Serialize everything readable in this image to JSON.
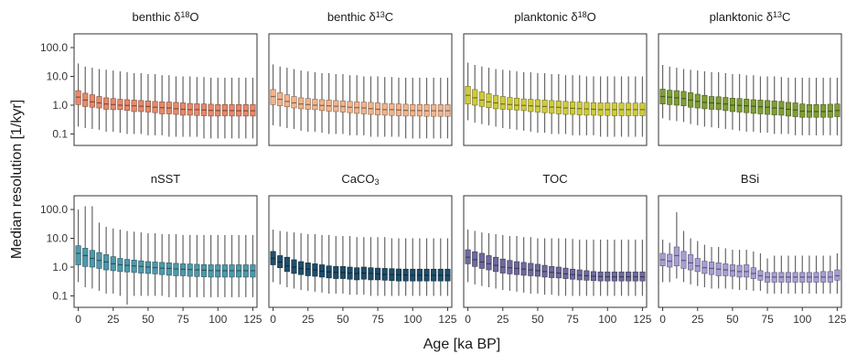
{
  "figure": {
    "xlabel": "Age [ka BP]",
    "ylabel": "Median resolution [1/kyr]"
  },
  "chart_data": {
    "type": "box",
    "y_scale": "log10",
    "ylim": [
      0.04,
      300
    ],
    "y_ticks": [
      0.1,
      1.0,
      10.0,
      100.0
    ],
    "y_tick_labels": [
      "0.1",
      "1.0",
      "10.0",
      "100.0"
    ],
    "xlim": [
      -3,
      128
    ],
    "x_ticks": [
      0,
      25,
      50,
      75,
      100,
      125
    ],
    "x_tick_labels": [
      "0",
      "25",
      "50",
      "75",
      "100",
      "125"
    ],
    "box_width_ka": 3.6,
    "bin_ages": [
      0,
      5,
      10,
      15,
      20,
      25,
      30,
      35,
      40,
      45,
      50,
      55,
      60,
      65,
      70,
      75,
      80,
      85,
      90,
      95,
      100,
      105,
      110,
      115,
      120,
      125
    ],
    "grid": false,
    "panels": [
      {
        "title_parts": [
          "benthic δ",
          "18",
          "O"
        ],
        "color": "#E8896A",
        "q1": [
          1.05,
          0.9,
          0.85,
          0.8,
          0.72,
          0.7,
          0.7,
          0.66,
          0.6,
          0.6,
          0.58,
          0.55,
          0.5,
          0.5,
          0.48,
          0.45,
          0.45,
          0.44,
          0.43,
          0.42,
          0.42,
          0.43,
          0.42,
          0.42,
          0.42,
          0.42
        ],
        "med": [
          1.9,
          1.5,
          1.3,
          1.2,
          1.1,
          1.05,
          1.0,
          0.98,
          0.95,
          0.92,
          0.9,
          0.85,
          0.82,
          0.8,
          0.75,
          0.72,
          0.7,
          0.7,
          0.68,
          0.66,
          0.65,
          0.65,
          0.65,
          0.64,
          0.64,
          0.64
        ],
        "q3": [
          3.2,
          2.6,
          2.3,
          2.0,
          1.8,
          1.7,
          1.6,
          1.55,
          1.5,
          1.45,
          1.4,
          1.35,
          1.3,
          1.28,
          1.25,
          1.2,
          1.15,
          1.12,
          1.1,
          1.08,
          1.05,
          1.05,
          1.05,
          1.05,
          1.05,
          1.05
        ],
        "lo": [
          0.18,
          0.16,
          0.15,
          0.14,
          0.12,
          0.12,
          0.11,
          0.1,
          0.1,
          0.1,
          0.09,
          0.09,
          0.09,
          0.08,
          0.08,
          0.08,
          0.08,
          0.08,
          0.07,
          0.07,
          0.07,
          0.07,
          0.07,
          0.07,
          0.07,
          0.07
        ],
        "hi": [
          28,
          22,
          20,
          18,
          17,
          16,
          15,
          14,
          13,
          13,
          12,
          12,
          11,
          11,
          10,
          10,
          10,
          9.5,
          9.5,
          9,
          9,
          9,
          9,
          9,
          9,
          9
        ]
      },
      {
        "title_parts": [
          "benthic δ",
          "13",
          "C"
        ],
        "color": "#F2B48C",
        "q1": [
          1.05,
          0.95,
          0.88,
          0.8,
          0.75,
          0.72,
          0.7,
          0.65,
          0.62,
          0.6,
          0.58,
          0.55,
          0.52,
          0.5,
          0.48,
          0.46,
          0.45,
          0.44,
          0.43,
          0.42,
          0.42,
          0.42,
          0.41,
          0.41,
          0.41,
          0.41
        ],
        "med": [
          2.0,
          1.6,
          1.35,
          1.2,
          1.1,
          1.05,
          1.0,
          0.98,
          0.95,
          0.92,
          0.9,
          0.85,
          0.82,
          0.8,
          0.76,
          0.72,
          0.7,
          0.7,
          0.68,
          0.66,
          0.65,
          0.65,
          0.64,
          0.64,
          0.64,
          0.64
        ],
        "q3": [
          3.5,
          2.7,
          2.3,
          2.0,
          1.8,
          1.7,
          1.62,
          1.55,
          1.5,
          1.45,
          1.4,
          1.35,
          1.3,
          1.28,
          1.25,
          1.2,
          1.15,
          1.12,
          1.1,
          1.08,
          1.05,
          1.05,
          1.05,
          1.04,
          1.04,
          1.04
        ],
        "lo": [
          0.2,
          0.18,
          0.16,
          0.15,
          0.13,
          0.12,
          0.12,
          0.11,
          0.1,
          0.1,
          0.1,
          0.09,
          0.09,
          0.09,
          0.08,
          0.08,
          0.08,
          0.08,
          0.08,
          0.07,
          0.07,
          0.07,
          0.07,
          0.07,
          0.07,
          0.07
        ],
        "hi": [
          26,
          22,
          20,
          18,
          16,
          15,
          14,
          13,
          13,
          12,
          12,
          11,
          11,
          10,
          10,
          10,
          9.5,
          9.5,
          9,
          9,
          9,
          9,
          9,
          9,
          9,
          9
        ]
      },
      {
        "title_parts": [
          "planktonic δ",
          "18",
          "O"
        ],
        "color": "#CFCB3A",
        "q1": [
          1.1,
          1.0,
          0.9,
          0.82,
          0.75,
          0.72,
          0.7,
          0.68,
          0.65,
          0.6,
          0.58,
          0.55,
          0.52,
          0.5,
          0.48,
          0.48,
          0.46,
          0.45,
          0.45,
          0.44,
          0.44,
          0.43,
          0.43,
          0.43,
          0.43,
          0.43
        ],
        "med": [
          2.2,
          1.8,
          1.5,
          1.3,
          1.2,
          1.1,
          1.05,
          1.0,
          0.98,
          0.95,
          0.92,
          0.9,
          0.86,
          0.84,
          0.8,
          0.78,
          0.76,
          0.74,
          0.72,
          0.7,
          0.7,
          0.7,
          0.7,
          0.7,
          0.7,
          0.7
        ],
        "q3": [
          4.5,
          3.5,
          2.9,
          2.5,
          2.2,
          2.0,
          1.85,
          1.75,
          1.65,
          1.6,
          1.55,
          1.5,
          1.45,
          1.4,
          1.35,
          1.3,
          1.28,
          1.25,
          1.22,
          1.2,
          1.2,
          1.2,
          1.18,
          1.18,
          1.18,
          1.18
        ],
        "lo": [
          0.3,
          0.25,
          0.22,
          0.2,
          0.18,
          0.16,
          0.15,
          0.14,
          0.13,
          0.12,
          0.11,
          0.11,
          0.1,
          0.1,
          0.1,
          0.09,
          0.09,
          0.09,
          0.09,
          0.08,
          0.08,
          0.08,
          0.08,
          0.08,
          0.08,
          0.08
        ],
        "hi": [
          30,
          25,
          22,
          20,
          18,
          17,
          16,
          15,
          14,
          14,
          13,
          13,
          12,
          12,
          11,
          11,
          11,
          10,
          10,
          10,
          10,
          10,
          10,
          10,
          10,
          10
        ]
      },
      {
        "title_parts": [
          "planktonic δ",
          "13",
          "C"
        ],
        "color": "#7F9E35",
        "q1": [
          1.1,
          1.05,
          1.0,
          0.95,
          0.85,
          0.8,
          0.75,
          0.72,
          0.7,
          0.65,
          0.6,
          0.58,
          0.55,
          0.52,
          0.5,
          0.48,
          0.46,
          0.45,
          0.42,
          0.4,
          0.38,
          0.38,
          0.38,
          0.38,
          0.38,
          0.4
        ],
        "med": [
          2.0,
          1.9,
          1.8,
          1.7,
          1.5,
          1.35,
          1.25,
          1.2,
          1.15,
          1.1,
          1.0,
          0.98,
          0.95,
          0.92,
          0.88,
          0.85,
          0.8,
          0.78,
          0.72,
          0.68,
          0.62,
          0.6,
          0.6,
          0.6,
          0.62,
          0.65
        ],
        "q3": [
          3.6,
          3.3,
          3.2,
          3.0,
          2.7,
          2.4,
          2.2,
          2.0,
          1.95,
          1.85,
          1.75,
          1.7,
          1.62,
          1.55,
          1.5,
          1.45,
          1.4,
          1.35,
          1.25,
          1.2,
          1.1,
          1.05,
          1.05,
          1.05,
          1.08,
          1.1
        ],
        "lo": [
          0.35,
          0.3,
          0.28,
          0.26,
          0.22,
          0.2,
          0.18,
          0.17,
          0.16,
          0.15,
          0.14,
          0.13,
          0.12,
          0.12,
          0.11,
          0.11,
          0.1,
          0.1,
          0.1,
          0.09,
          0.09,
          0.09,
          0.09,
          0.09,
          0.09,
          0.09
        ],
        "hi": [
          25,
          22,
          20,
          18,
          17,
          16,
          15,
          14,
          14,
          13,
          12,
          12,
          11,
          11,
          10,
          10,
          10,
          9.5,
          9,
          9,
          9,
          9,
          9,
          9,
          9,
          9
        ]
      },
      {
        "title_parts": [
          "nSST"
        ],
        "color": "#4E99AB",
        "q1": [
          1.2,
          1.05,
          1.0,
          0.9,
          0.8,
          0.75,
          0.7,
          0.68,
          0.65,
          0.62,
          0.6,
          0.58,
          0.55,
          0.52,
          0.5,
          0.5,
          0.48,
          0.47,
          0.46,
          0.45,
          0.45,
          0.45,
          0.45,
          0.45,
          0.45,
          0.45
        ],
        "med": [
          3.0,
          2.5,
          2.0,
          1.7,
          1.5,
          1.3,
          1.2,
          1.15,
          1.1,
          1.05,
          1.0,
          0.96,
          0.92,
          0.9,
          0.86,
          0.84,
          0.82,
          0.8,
          0.78,
          0.76,
          0.75,
          0.75,
          0.75,
          0.75,
          0.75,
          0.75
        ],
        "q3": [
          5.5,
          4.5,
          3.8,
          3.2,
          2.7,
          2.3,
          2.0,
          1.85,
          1.75,
          1.65,
          1.55,
          1.5,
          1.45,
          1.4,
          1.35,
          1.3,
          1.28,
          1.25,
          1.22,
          1.2,
          1.2,
          1.2,
          1.2,
          1.2,
          1.2,
          1.2
        ],
        "lo": [
          0.3,
          0.2,
          0.18,
          0.15,
          0.12,
          0.12,
          0.1,
          0.05,
          0.1,
          0.1,
          0.1,
          0.1,
          0.1,
          0.09,
          0.09,
          0.09,
          0.09,
          0.09,
          0.09,
          0.09,
          0.09,
          0.09,
          0.09,
          0.09,
          0.09,
          0.09
        ],
        "hi": [
          100,
          130,
          130,
          35,
          25,
          22,
          20,
          18,
          17,
          16,
          15,
          15,
          14,
          14,
          14,
          13,
          13,
          13,
          13,
          13,
          13,
          13,
          13,
          13,
          13,
          13
        ]
      },
      {
        "title_parts": [
          "CaCO",
          "3",
          ""
        ],
        "color": "#1E4E6B",
        "q1": [
          1.2,
          0.95,
          0.7,
          0.6,
          0.55,
          0.5,
          0.48,
          0.45,
          0.42,
          0.4,
          0.4,
          0.38,
          0.36,
          0.38,
          0.36,
          0.36,
          0.35,
          0.34,
          0.33,
          0.33,
          0.33,
          0.33,
          0.33,
          0.33,
          0.33,
          0.33
        ],
        "med": [
          2.0,
          1.5,
          1.1,
          1.0,
          0.9,
          0.85,
          0.8,
          0.72,
          0.68,
          0.66,
          0.65,
          0.62,
          0.6,
          0.62,
          0.6,
          0.58,
          0.56,
          0.55,
          0.54,
          0.53,
          0.52,
          0.52,
          0.52,
          0.52,
          0.52,
          0.52
        ],
        "q3": [
          3.5,
          2.5,
          2.2,
          1.8,
          1.55,
          1.4,
          1.3,
          1.2,
          1.1,
          1.05,
          1.05,
          1.0,
          0.95,
          1.0,
          0.95,
          0.92,
          0.9,
          0.88,
          0.86,
          0.85,
          0.85,
          0.85,
          0.85,
          0.85,
          0.85,
          0.85
        ],
        "lo": [
          0.3,
          0.25,
          0.2,
          0.18,
          0.16,
          0.15,
          0.14,
          0.13,
          0.12,
          0.12,
          0.12,
          0.11,
          0.11,
          0.11,
          0.1,
          0.1,
          0.1,
          0.1,
          0.1,
          0.1,
          0.1,
          0.1,
          0.1,
          0.1,
          0.1,
          0.1
        ],
        "hi": [
          20,
          18,
          17,
          16,
          15,
          14,
          14,
          13,
          13,
          12,
          12,
          12,
          11,
          11,
          11,
          11,
          11,
          10,
          10,
          10,
          10,
          10,
          10,
          10,
          10,
          10
        ]
      },
      {
        "title_parts": [
          "TOC"
        ],
        "color": "#6E6A9E",
        "q1": [
          1.3,
          1.05,
          0.9,
          0.8,
          0.7,
          0.62,
          0.58,
          0.55,
          0.52,
          0.5,
          0.48,
          0.45,
          0.43,
          0.42,
          0.4,
          0.38,
          0.36,
          0.35,
          0.34,
          0.33,
          0.33,
          0.33,
          0.33,
          0.33,
          0.33,
          0.33
        ],
        "med": [
          2.2,
          1.8,
          1.5,
          1.3,
          1.15,
          1.0,
          0.95,
          0.9,
          0.85,
          0.8,
          0.75,
          0.7,
          0.66,
          0.62,
          0.58,
          0.55,
          0.52,
          0.5,
          0.48,
          0.47,
          0.46,
          0.46,
          0.46,
          0.46,
          0.46,
          0.46
        ],
        "q3": [
          4.0,
          3.4,
          3.0,
          2.5,
          2.2,
          1.9,
          1.7,
          1.55,
          1.45,
          1.35,
          1.25,
          1.15,
          1.05,
          1.0,
          0.92,
          0.85,
          0.8,
          0.75,
          0.7,
          0.68,
          0.68,
          0.68,
          0.68,
          0.68,
          0.68,
          0.68
        ],
        "lo": [
          0.3,
          0.25,
          0.22,
          0.2,
          0.18,
          0.16,
          0.15,
          0.14,
          0.13,
          0.12,
          0.12,
          0.11,
          0.11,
          0.1,
          0.1,
          0.1,
          0.1,
          0.1,
          0.1,
          0.1,
          0.1,
          0.1,
          0.1,
          0.1,
          0.1,
          0.1
        ],
        "hi": [
          20,
          18,
          16,
          15,
          14,
          13,
          12,
          12,
          11,
          11,
          10,
          10,
          10,
          10,
          10,
          9.5,
          9,
          9,
          9,
          9,
          9,
          9,
          9,
          9,
          9,
          9
        ]
      },
      {
        "title_parts": [
          "BSi"
        ],
        "color": "#A89ED4",
        "q1": [
          1.1,
          1.0,
          1.1,
          0.9,
          0.8,
          0.7,
          0.6,
          0.55,
          0.5,
          0.5,
          0.48,
          0.45,
          0.45,
          0.4,
          0.35,
          0.3,
          0.3,
          0.3,
          0.3,
          0.3,
          0.3,
          0.3,
          0.3,
          0.3,
          0.3,
          0.35
        ],
        "med": [
          1.8,
          1.6,
          2.5,
          1.7,
          1.4,
          1.1,
          0.95,
          0.9,
          0.85,
          0.8,
          0.75,
          0.7,
          0.7,
          0.6,
          0.5,
          0.45,
          0.45,
          0.45,
          0.45,
          0.45,
          0.45,
          0.45,
          0.45,
          0.45,
          0.45,
          0.5
        ],
        "q3": [
          3.0,
          2.8,
          5.0,
          3.5,
          2.7,
          2.0,
          1.6,
          1.5,
          1.4,
          1.3,
          1.2,
          1.15,
          1.2,
          0.95,
          0.75,
          0.65,
          0.65,
          0.65,
          0.65,
          0.65,
          0.65,
          0.65,
          0.65,
          0.7,
          0.7,
          0.8
        ],
        "lo": [
          0.3,
          0.3,
          0.4,
          0.3,
          0.25,
          0.22,
          0.2,
          0.18,
          0.18,
          0.18,
          0.17,
          0.16,
          0.16,
          0.15,
          0.15,
          0.12,
          0.12,
          0.12,
          0.12,
          0.12,
          0.12,
          0.12,
          0.12,
          0.12,
          0.12,
          0.12
        ],
        "hi": [
          9,
          7,
          80,
          18,
          10,
          8,
          6,
          5,
          5,
          4.5,
          4,
          4,
          4,
          3.5,
          3,
          2,
          2.5,
          2.5,
          2.5,
          2.5,
          2.5,
          2.5,
          2.5,
          2.5,
          2.5,
          3
        ]
      }
    ]
  }
}
